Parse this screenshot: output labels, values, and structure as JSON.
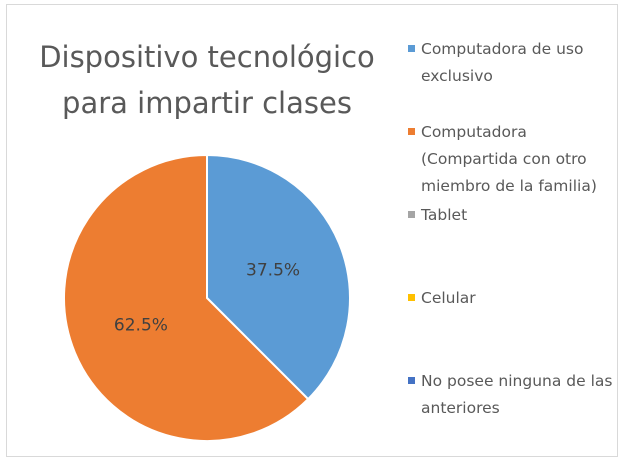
{
  "chart_data": {
    "type": "pie",
    "title": "Dispositivo tecnológico para impartir clases",
    "categories": [
      "Computadora de uso exclusivo",
      "Computadora (Compartida con otro miembro de la familia)",
      "Tablet",
      "Celular",
      "No posee ninguna de las anteriores"
    ],
    "values": [
      37.5,
      62.5,
      0,
      0,
      0
    ],
    "value_labels": [
      "37.5%",
      "62.5%",
      null,
      null,
      null
    ],
    "colors": [
      "#5b9bd5",
      "#ed7d31",
      "#a5a5a5",
      "#ffc000",
      "#4472c4"
    ],
    "legend": "right"
  }
}
